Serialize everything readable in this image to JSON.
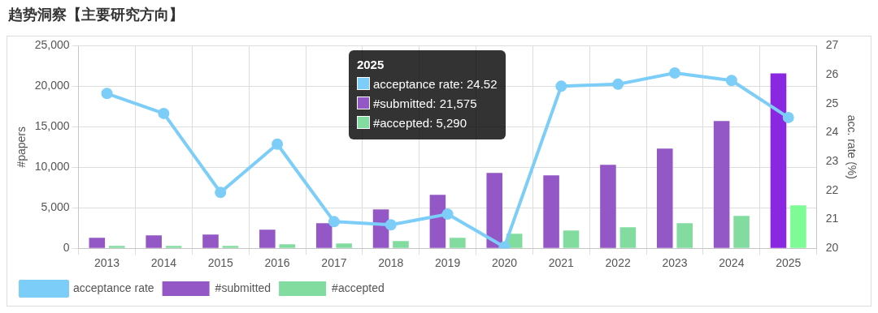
{
  "chart_data": {
    "type": "bar",
    "title": "趋势洞察【主要研究方向】",
    "categories": [
      "2013",
      "2014",
      "2015",
      "2016",
      "2017",
      "2018",
      "2019",
      "2020",
      "2021",
      "2022",
      "2023",
      "2024",
      "2025"
    ],
    "series": [
      {
        "name": "acceptance rate",
        "type": "line",
        "axis": "y2",
        "color": "#7ccdf8",
        "values": [
          25.35,
          24.66,
          21.93,
          23.6,
          20.92,
          20.81,
          21.18,
          20.05,
          25.6,
          25.67,
          26.06,
          25.8,
          24.52
        ]
      },
      {
        "name": "#submitted",
        "color": "#9457c6",
        "colors": [
          "#9457c6",
          "#9457c6",
          "#9457c6",
          "#9457c6",
          "#9457c6",
          "#9457c6",
          "#9457c6",
          "#9457c6",
          "#9457c6",
          "#9457c6",
          "#9457c6",
          "#9457c6",
          "#8a27e0"
        ],
        "values": [
          1300,
          1600,
          1700,
          2300,
          3100,
          4800,
          6600,
          9300,
          9000,
          10300,
          12300,
          15700,
          21575
        ]
      },
      {
        "name": "#accepted",
        "color": "#82dca0",
        "colors": [
          "#82dca0",
          "#82dca0",
          "#82dca0",
          "#82dca0",
          "#82dca0",
          "#82dca0",
          "#82dca0",
          "#82dca0",
          "#82dca0",
          "#82dca0",
          "#82dca0",
          "#82dca0",
          "#7dfb94"
        ],
        "values": [
          300,
          300,
          300,
          500,
          600,
          900,
          1300,
          1800,
          2200,
          2600,
          3100,
          4000,
          5290
        ]
      }
    ],
    "ylabel": "#papers",
    "y2label": "acc. rate (%)",
    "ylim": [
      0,
      25000
    ],
    "yticks": [
      {
        "value": 0,
        "label": "0"
      },
      {
        "value": 5000,
        "label": "5,000"
      },
      {
        "value": 10000,
        "label": "10,000"
      },
      {
        "value": 15000,
        "label": "15,000"
      },
      {
        "value": 20000,
        "label": "20,000"
      },
      {
        "value": 25000,
        "label": "25,000"
      }
    ],
    "y2lim": [
      20,
      27
    ],
    "y2ticks": [
      20,
      21,
      22,
      23,
      24,
      25,
      26,
      27
    ],
    "grid": true,
    "legend": "bottom left",
    "marker": "circle",
    "line_style": "solid",
    "annotations": [
      "2025",
      "acceptance rate: 24.52",
      "#submitted: 21,575",
      "#accepted: 5,290"
    ]
  }
}
